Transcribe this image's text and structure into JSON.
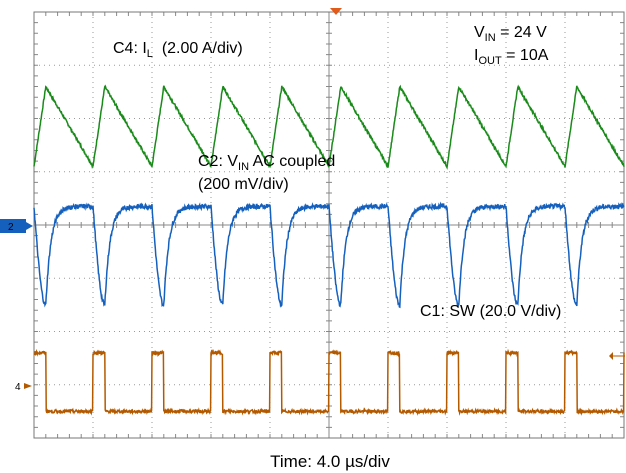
{
  "chart_data": {
    "type": "line",
    "x_unit": "µs",
    "x_range": [
      0,
      40
    ],
    "annotations": {
      "c4": {
        "pre": "C4: I",
        "sub": "L",
        "post": "  (2.00 A/div)"
      },
      "c2_line1": {
        "pre": "C2: V",
        "sub": "IN",
        "post": " AC coupled"
      },
      "c2_line2": "(200 mV/div)",
      "c1": "C1: SW (20.0 V/div)",
      "vin": {
        "pre": "V",
        "sub": "IN",
        "post": " = 24 V"
      },
      "iout": {
        "pre": "I",
        "sub": "OUT",
        "post": " = 10A"
      }
    },
    "xlabel": "Time: 4.0 µs/div",
    "markers": {
      "ch2": "2",
      "ch4": "4"
    },
    "switching_period_us": 4.0,
    "switching_start_us": 0.0,
    "on_time_us": 0.8,
    "series": [
      {
        "channel": "C4",
        "color": "#1a8a1a",
        "div_range": [
          1.1,
          2.6
        ]
      },
      {
        "channel": "C2",
        "color": "#1560bd",
        "div_range": [
          -1.5,
          0.35
        ]
      },
      {
        "channel": "C1",
        "color": "#b35a00",
        "div_range": [
          -3.5,
          -2.4
        ]
      }
    ],
    "grid": true,
    "divisions": {
      "x": 10,
      "y": 8
    }
  }
}
